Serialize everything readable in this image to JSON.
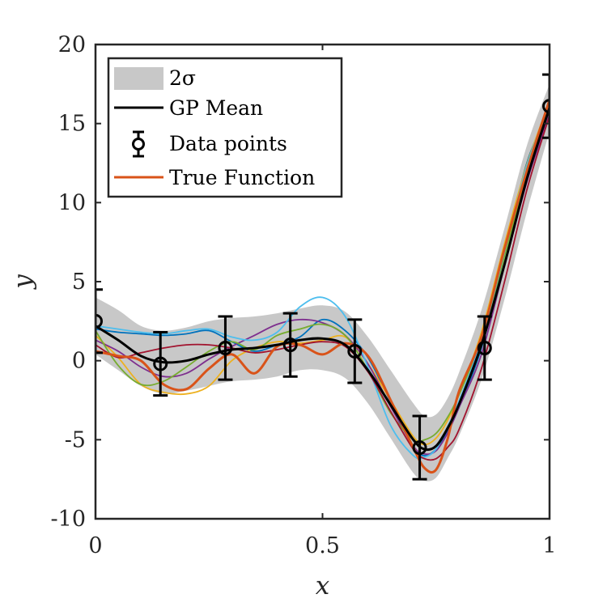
{
  "chart_data": {
    "type": "line",
    "xlabel": "x",
    "ylabel": "y",
    "xlim": [
      0,
      1
    ],
    "ylim": [
      -10,
      20
    ],
    "xticks": [
      0,
      0.5,
      1
    ],
    "xtick_labels": [
      "0",
      "0.5",
      "1"
    ],
    "yticks": [
      -10,
      -5,
      0,
      5,
      10,
      15,
      20
    ],
    "ytick_labels": [
      "-10",
      "-5",
      "0",
      "5",
      "10",
      "15",
      "20"
    ],
    "grid": false,
    "legend_position": "top-left",
    "legend": {
      "band": "2σ",
      "mean": "GP Mean",
      "data": "Data points",
      "true": "True Function"
    },
    "colors": {
      "band": "#c8c8c8",
      "mean": "#000000",
      "data": "#000000",
      "true": "#d95319",
      "samples": [
        "#0072bd",
        "#edb120",
        "#7e2f8e",
        "#77ac30",
        "#4dbeee",
        "#a2142f"
      ]
    },
    "data_points": [
      {
        "x": 0.0,
        "y": 2.5,
        "err": 2.0
      },
      {
        "x": 0.143,
        "y": -0.2,
        "err": 2.0
      },
      {
        "x": 0.286,
        "y": 0.8,
        "err": 2.0
      },
      {
        "x": 0.429,
        "y": 1.0,
        "err": 2.0
      },
      {
        "x": 0.571,
        "y": 0.6,
        "err": 2.0
      },
      {
        "x": 0.714,
        "y": -5.5,
        "err": 2.0
      },
      {
        "x": 0.857,
        "y": 0.8,
        "err": 2.0
      },
      {
        "x": 1.0,
        "y": 16.1,
        "err": 2.0
      }
    ],
    "x": [
      0,
      0.05,
      0.1,
      0.15,
      0.2,
      0.25,
      0.3,
      0.35,
      0.4,
      0.45,
      0.5,
      0.55,
      0.6,
      0.65,
      0.7,
      0.725,
      0.75,
      0.775,
      0.8,
      0.85,
      0.9,
      0.95,
      1.0
    ],
    "mean": [
      2.2,
      1.3,
      0.3,
      -0.1,
      0.0,
      0.4,
      0.7,
      0.8,
      1.0,
      1.3,
      1.4,
      1.0,
      -0.6,
      -2.8,
      -5.0,
      -5.6,
      -5.4,
      -4.3,
      -2.8,
      1.0,
      6.0,
      11.5,
      16.0
    ],
    "band_upper": [
      4.0,
      3.2,
      2.2,
      1.9,
      2.1,
      2.5,
      2.7,
      2.8,
      3.0,
      3.3,
      3.5,
      3.1,
      1.5,
      -0.6,
      -2.7,
      -3.5,
      -3.4,
      -2.4,
      -0.8,
      3.2,
      8.3,
      13.6,
      17.5
    ],
    "band_lower": [
      0.4,
      -0.6,
      -1.6,
      -2.1,
      -1.9,
      -1.6,
      -1.3,
      -1.2,
      -1.0,
      -0.6,
      -0.6,
      -1.1,
      -2.7,
      -4.9,
      -7.1,
      -7.6,
      -7.4,
      -6.2,
      -4.8,
      -1.2,
      3.8,
      9.4,
      14.5
    ],
    "true_function": [
      0.6,
      0.3,
      0.0,
      -1.5,
      -1.8,
      -0.5,
      0.4,
      -0.8,
      0.9,
      1.0,
      0.4,
      1.1,
      0.3,
      -2.5,
      -5.5,
      -6.8,
      -6.9,
      -5.0,
      -2.0,
      1.5,
      7.0,
      12.0,
      16.5
    ],
    "series": [
      {
        "values": [
          2.0,
          1.8,
          1.7,
          1.6,
          1.7,
          1.9,
          1.2,
          0.6,
          1.0,
          1.5,
          2.6,
          1.9,
          0.2,
          -2.6,
          -5.5,
          -6.0,
          -5.6,
          -4.5,
          -3.0,
          0.8,
          6.6,
          12.5,
          15.8
        ]
      },
      {
        "values": [
          1.6,
          0.2,
          -1.5,
          -2.0,
          -2.1,
          -1.6,
          0.0,
          0.8,
          1.2,
          1.1,
          1.3,
          1.5,
          -0.2,
          -2.5,
          -4.8,
          -5.3,
          -4.9,
          -3.8,
          -2.2,
          1.8,
          7.3,
          12.4,
          16.4
        ]
      },
      {
        "values": [
          1.3,
          0.6,
          -0.4,
          -1.0,
          -0.8,
          0.1,
          0.9,
          1.6,
          2.3,
          2.6,
          2.4,
          1.6,
          -0.2,
          -2.9,
          -5.4,
          -5.9,
          -5.7,
          -4.6,
          -3.0,
          0.4,
          5.9,
          11.3,
          15.6
        ]
      },
      {
        "values": [
          1.9,
          -0.3,
          -1.5,
          -1.3,
          -0.4,
          0.6,
          1.2,
          0.7,
          1.6,
          2.0,
          2.3,
          1.6,
          -0.6,
          -3.3,
          -5.0,
          -5.0,
          -4.6,
          -3.6,
          -2.2,
          1.4,
          6.5,
          11.8,
          15.9
        ]
      },
      {
        "values": [
          2.2,
          2.0,
          1.8,
          1.7,
          1.9,
          2.0,
          1.5,
          1.3,
          1.8,
          3.4,
          4.0,
          2.8,
          -0.4,
          -4.1,
          -6.0,
          -6.1,
          -5.6,
          -4.2,
          -2.6,
          1.3,
          6.8,
          12.3,
          16.2
        ]
      },
      {
        "values": [
          1.0,
          0.2,
          0.5,
          0.8,
          1.0,
          1.0,
          0.8,
          0.5,
          0.7,
          1.0,
          1.2,
          0.9,
          -0.7,
          -3.2,
          -5.6,
          -6.2,
          -6.2,
          -5.5,
          -4.4,
          -0.5,
          4.9,
          10.8,
          15.5
        ]
      }
    ]
  }
}
